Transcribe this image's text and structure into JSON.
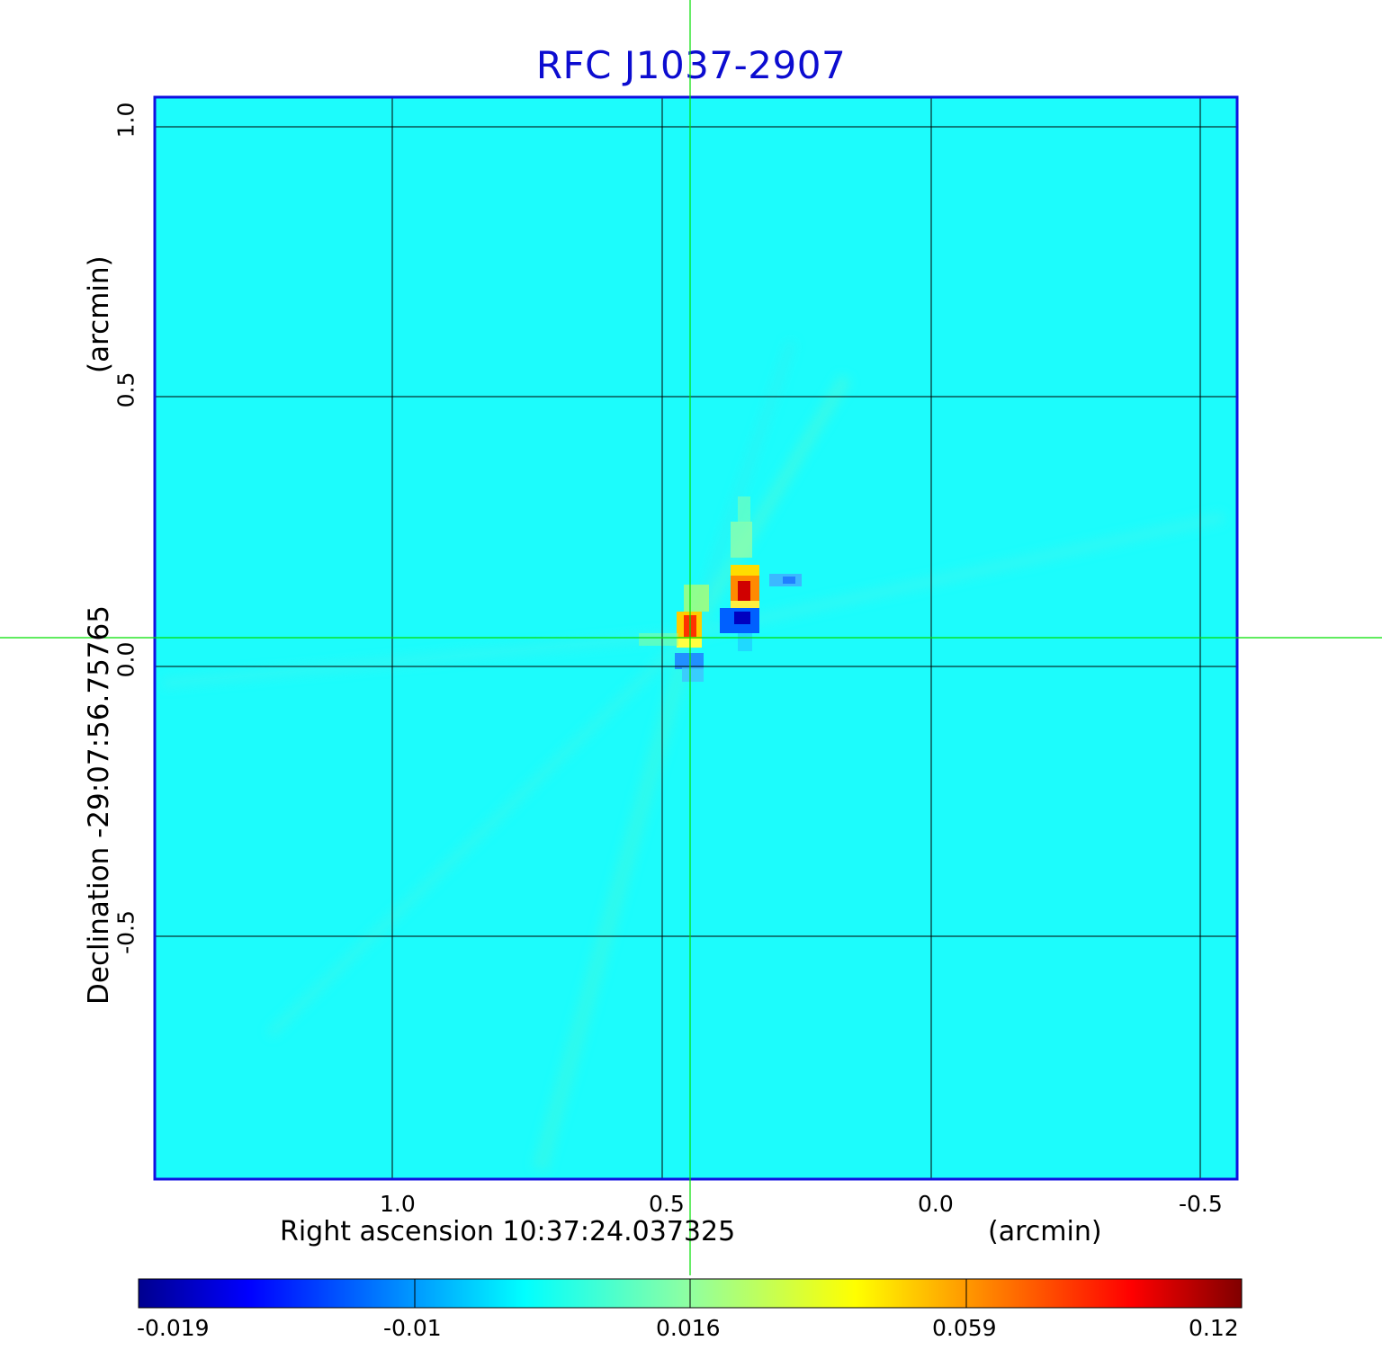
{
  "title": "RFC J1037-2907",
  "x_axis": {
    "label": "Right ascension  10:37:24.037325",
    "unit": "(arcmin)",
    "ticks": [
      "1.0",
      "0.5",
      "0.0",
      "-0.5"
    ]
  },
  "y_axis": {
    "label": "Declination  -29:07:56.75765",
    "unit": "(arcmin)",
    "ticks": [
      "1.0",
      "0.5",
      "0.0",
      "-0.5"
    ]
  },
  "colorbar": {
    "ticks": [
      "-0.019",
      "-0.01",
      "0.016",
      "0.059",
      "0.12"
    ],
    "colormap": [
      "#00008f",
      "#0000ff",
      "#00ffff",
      "#ffff00",
      "#ff0000",
      "#800000"
    ]
  },
  "colors": {
    "title": "#0c0cd0",
    "frame": "#1010e0",
    "background_field": "#1cfcfc",
    "crosshair": "#00e000",
    "grid": "#000000"
  }
}
